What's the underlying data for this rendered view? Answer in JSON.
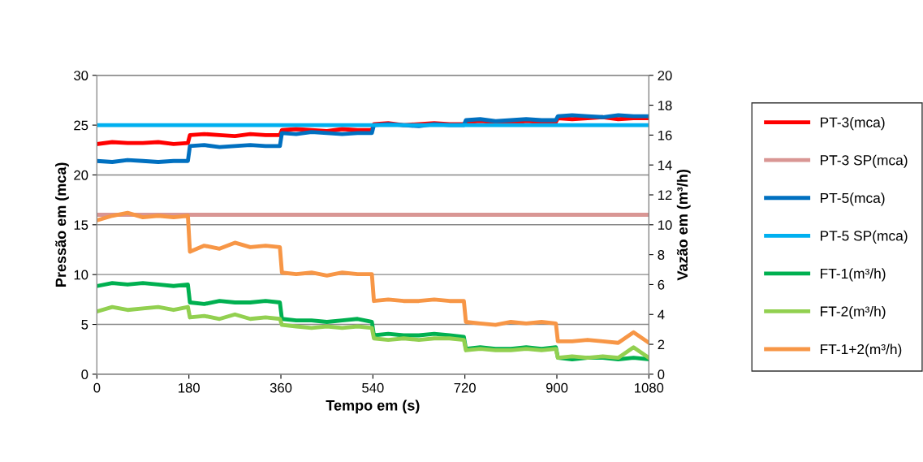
{
  "chart_data": {
    "type": "line",
    "xlabel": "Tempo em (s)",
    "ylabel": "Pressão em (mca)",
    "y2label": "Vazão em (m³/h)",
    "xlim": [
      0,
      1080
    ],
    "xticks": [
      0,
      180,
      360,
      540,
      720,
      900,
      1080
    ],
    "ylim": [
      0,
      30
    ],
    "yticks": [
      0,
      5,
      10,
      15,
      20,
      25,
      30
    ],
    "y2lim": [
      0,
      20
    ],
    "y2ticks": [
      0,
      2,
      4,
      6,
      8,
      10,
      12,
      14,
      16,
      18,
      20
    ],
    "grid": "y",
    "legend": "right",
    "marker": "none",
    "line_style": "solid",
    "x": [
      0,
      30,
      60,
      90,
      120,
      150,
      178,
      182,
      210,
      240,
      270,
      300,
      330,
      358,
      362,
      390,
      420,
      450,
      480,
      510,
      538,
      542,
      570,
      600,
      630,
      660,
      690,
      718,
      722,
      750,
      780,
      810,
      840,
      870,
      898,
      902,
      930,
      960,
      990,
      1020,
      1050,
      1080
    ],
    "series": [
      {
        "name": "PT-3(mca)",
        "color": "#ff0000",
        "values": [
          23.1,
          23.3,
          23.2,
          23.2,
          23.3,
          23.1,
          23.2,
          24.0,
          24.1,
          24.0,
          23.9,
          24.1,
          24.0,
          24.0,
          24.5,
          24.6,
          24.5,
          24.4,
          24.6,
          24.5,
          24.5,
          25.1,
          25.2,
          25.0,
          25.1,
          25.2,
          25.1,
          25.1,
          25.3,
          25.4,
          25.3,
          25.2,
          25.4,
          25.3,
          25.3,
          25.7,
          25.6,
          25.7,
          25.8,
          25.6,
          25.7,
          25.7
        ]
      },
      {
        "name": "PT-3 SP(mca)",
        "color": "#d99694",
        "values": [
          16,
          16,
          16,
          16,
          16,
          16,
          16,
          16,
          16,
          16,
          16,
          16,
          16,
          16,
          16,
          16,
          16,
          16,
          16,
          16,
          16,
          16,
          16,
          16,
          16,
          16,
          16,
          16,
          16,
          16,
          16,
          16,
          16,
          16,
          16,
          16,
          16,
          16,
          16,
          16,
          16,
          16
        ]
      },
      {
        "name": "PT-5(mca)",
        "color": "#0070c0",
        "values": [
          21.4,
          21.3,
          21.5,
          21.4,
          21.3,
          21.4,
          21.4,
          22.9,
          23.0,
          22.8,
          22.9,
          23.0,
          22.9,
          22.9,
          24.2,
          24.1,
          24.3,
          24.2,
          24.1,
          24.2,
          24.2,
          25.0,
          25.1,
          25.0,
          24.9,
          25.1,
          25.0,
          25.0,
          25.5,
          25.6,
          25.4,
          25.5,
          25.6,
          25.5,
          25.5,
          25.9,
          26.0,
          25.9,
          25.8,
          26.0,
          25.9,
          25.9
        ]
      },
      {
        "name": "PT-5 SP(mca)",
        "color": "#00b0f0",
        "values": [
          25,
          25,
          25,
          25,
          25,
          25,
          25,
          25,
          25,
          25,
          25,
          25,
          25,
          25,
          25,
          25,
          25,
          25,
          25,
          25,
          25,
          25,
          25,
          25,
          25,
          25,
          25,
          25,
          25,
          25,
          25,
          25,
          25,
          25,
          25,
          25,
          25,
          25,
          25,
          25,
          25,
          25
        ]
      },
      {
        "name": "FT-1(m³/h)",
        "color": "#00b050",
        "axis": "y2",
        "values": [
          5.9,
          6.1,
          6.0,
          6.1,
          6.0,
          5.9,
          6.0,
          4.8,
          4.7,
          4.9,
          4.8,
          4.8,
          4.9,
          4.8,
          3.7,
          3.6,
          3.6,
          3.5,
          3.6,
          3.7,
          3.5,
          2.6,
          2.7,
          2.6,
          2.6,
          2.7,
          2.6,
          2.5,
          1.7,
          1.8,
          1.7,
          1.7,
          1.8,
          1.7,
          1.8,
          1.1,
          1.0,
          1.1,
          1.1,
          1.0,
          1.1,
          1.0
        ]
      },
      {
        "name": "FT-2(m³/h)",
        "color": "#92d050",
        "axis": "y2",
        "values": [
          4.2,
          4.5,
          4.3,
          4.4,
          4.5,
          4.3,
          4.5,
          3.8,
          3.9,
          3.7,
          4.0,
          3.7,
          3.8,
          3.7,
          3.3,
          3.2,
          3.1,
          3.2,
          3.1,
          3.2,
          3.1,
          2.4,
          2.3,
          2.4,
          2.3,
          2.4,
          2.4,
          2.3,
          1.6,
          1.7,
          1.6,
          1.6,
          1.7,
          1.6,
          1.7,
          1.1,
          1.2,
          1.1,
          1.2,
          1.1,
          1.8,
          1.1
        ]
      },
      {
        "name": "FT-1+2(m³/h)",
        "color": "#f79646",
        "axis": "y2",
        "values": [
          10.3,
          10.6,
          10.8,
          10.5,
          10.6,
          10.5,
          10.6,
          8.2,
          8.6,
          8.4,
          8.8,
          8.5,
          8.6,
          8.5,
          6.8,
          6.7,
          6.8,
          6.6,
          6.8,
          6.7,
          6.7,
          4.9,
          5.0,
          4.9,
          4.9,
          5.0,
          4.9,
          4.9,
          3.5,
          3.4,
          3.3,
          3.5,
          3.4,
          3.5,
          3.4,
          2.2,
          2.2,
          2.3,
          2.2,
          2.1,
          2.8,
          2.1
        ]
      }
    ]
  }
}
